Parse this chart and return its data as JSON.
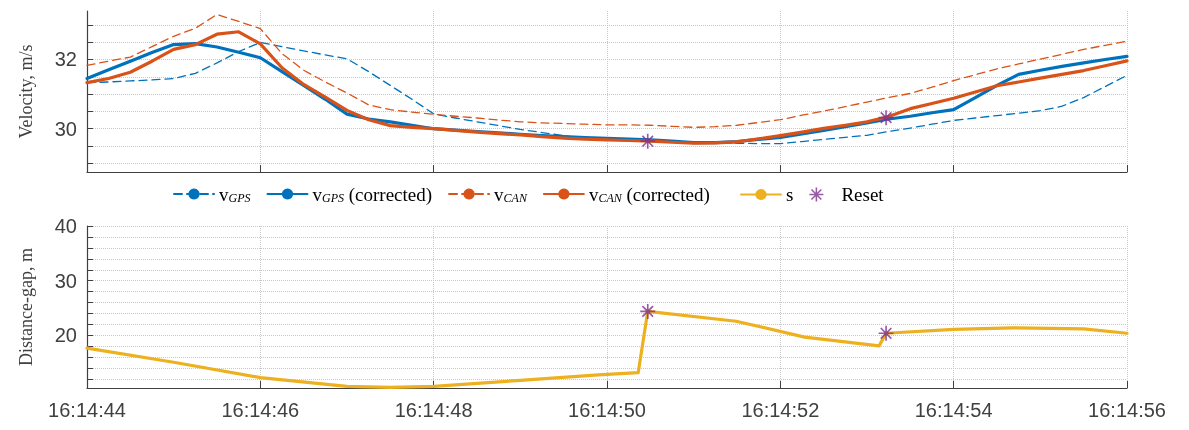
{
  "chart_data": [
    {
      "type": "line",
      "ylabel": "Velocity, m/s",
      "xlim": [
        16.2455556,
        16.2488889
      ],
      "xticks": [
        {
          "value": 16.2455556,
          "label": null
        },
        {
          "value": 16.2461111,
          "label": null
        },
        {
          "value": 16.2466667,
          "label": null
        },
        {
          "value": 16.2472222,
          "label": null
        },
        {
          "value": 16.2477778,
          "label": null
        },
        {
          "value": 16.2483333,
          "label": null
        },
        {
          "value": 16.2488889,
          "label": null
        }
      ],
      "ylim": [
        28.75,
        33.4
      ],
      "yticks": [
        {
          "value": 29,
          "label": null
        },
        {
          "value": 29.5,
          "label": null
        },
        30,
        {
          "value": 30.5,
          "label": null
        },
        {
          "value": 31,
          "label": null
        },
        {
          "value": 31.5,
          "label": null
        },
        32,
        {
          "value": 32.5,
          "label": null
        },
        {
          "value": 33,
          "label": null
        }
      ],
      "tick_labels": "y",
      "grid": true,
      "legend": "bottom",
      "x": [
        16.2455556,
        16.245625,
        16.2456944,
        16.2457639,
        16.2458333,
        16.2459028,
        16.2459722,
        16.2460417,
        16.2461111,
        16.2461806,
        16.24625,
        16.2463194,
        16.2463889,
        16.2464583,
        16.2465278,
        16.2465972,
        16.2466667,
        16.2467361,
        16.2468056,
        16.246875,
        16.2469444,
        16.2470139,
        16.2470833,
        16.2471528,
        16.2472222,
        16.2472917,
        16.2473611,
        16.2474306,
        16.2475,
        16.2475694,
        16.2476389,
        16.2477083,
        16.2477778,
        16.2478472,
        16.2479167,
        16.2479861,
        16.2480556,
        16.248125,
        16.2481944,
        16.2482639,
        16.2483333,
        16.2484028,
        16.2484722,
        16.2485417,
        16.2486111,
        16.2486806,
        16.24875,
        16.2488194,
        16.2488889
      ],
      "series": [
        {
          "name": "v$_{GPS}$",
          "color": "#0072bd",
          "line_style": "dashed",
          "values": [
            31.33,
            31.35,
            31.38,
            31.41,
            31.45,
            31.6,
            31.9,
            32.23,
            32.49,
            32.37,
            32.25,
            32.13,
            32.02,
            31.65,
            31.25,
            30.85,
            30.43,
            30.31,
            30.2,
            30.09,
            29.98,
            29.89,
            29.8,
            29.72,
            29.68,
            29.65,
            29.63,
            29.62,
            29.6,
            29.59,
            29.58,
            29.57,
            29.57,
            29.63,
            29.69,
            29.75,
            29.81,
            29.92,
            30.02,
            30.13,
            30.24,
            30.31,
            30.38,
            30.45,
            30.52,
            30.65,
            30.9,
            31.22,
            31.54
          ]
        },
        {
          "name": "v$_{GPS}$ (corrected)",
          "color": "#0072bd",
          "line_style": "solid",
          "values": [
            31.45,
            31.7,
            31.95,
            32.2,
            32.43,
            32.46,
            32.36,
            32.21,
            32.05,
            31.65,
            31.25,
            30.85,
            30.42,
            30.28,
            30.2,
            30.1,
            30.0,
            29.96,
            29.92,
            29.88,
            29.84,
            29.8,
            29.77,
            29.74,
            29.72,
            29.7,
            29.68,
            29.64,
            29.6,
            29.6,
            29.63,
            29.69,
            29.75,
            29.85,
            29.95,
            30.06,
            30.17,
            30.28,
            30.36,
            30.46,
            30.55,
            30.9,
            31.25,
            31.57,
            31.69,
            31.8,
            31.9,
            32.0,
            32.09
          ]
        },
        {
          "name": "v$_{CAN}$",
          "color": "#d95319",
          "line_style": "dashed",
          "values": [
            31.83,
            31.95,
            32.07,
            32.37,
            32.67,
            32.9,
            33.3,
            33.1,
            32.89,
            32.17,
            31.69,
            31.35,
            31.03,
            30.69,
            30.55,
            30.48,
            30.42,
            30.36,
            30.31,
            30.25,
            30.2,
            30.17,
            30.15,
            30.13,
            30.11,
            30.11,
            30.1,
            30.07,
            30.04,
            30.06,
            30.1,
            30.18,
            30.26,
            30.39,
            30.51,
            30.64,
            30.77,
            30.9,
            31.02,
            31.2,
            31.39,
            31.56,
            31.73,
            31.87,
            32.01,
            32.15,
            32.29,
            32.41,
            32.53
          ]
        },
        {
          "name": "v$_{CAN}$ (corrected)",
          "color": "#d95319",
          "line_style": "solid",
          "values": [
            31.33,
            31.45,
            31.63,
            31.95,
            32.29,
            32.43,
            32.73,
            32.8,
            32.45,
            31.76,
            31.28,
            30.91,
            30.53,
            30.26,
            30.09,
            30.04,
            30.0,
            29.95,
            29.9,
            29.86,
            29.82,
            29.77,
            29.73,
            29.7,
            29.68,
            29.66,
            29.64,
            29.61,
            29.58,
            29.59,
            29.62,
            29.71,
            29.8,
            29.9,
            30.01,
            30.1,
            30.2,
            30.35,
            30.58,
            30.73,
            30.88,
            31.06,
            31.24,
            31.35,
            31.46,
            31.57,
            31.68,
            31.82,
            31.96
          ]
        },
        {
          "type": "scatter",
          "color": "#7e2f8e",
          "marker": "star",
          "x": [
            16.2473528,
            16.2481167
          ],
          "values": [
            29.64,
            30.32
          ]
        }
      ]
    },
    {
      "type": "line",
      "ylabel": "Distance-gap, m",
      "xlim": [
        16.2455556,
        16.2488889
      ],
      "xticks": [
        {
          "value": 16.2455556,
          "label": "16:14:44"
        },
        {
          "value": 16.2461111,
          "label": "16:14:46"
        },
        {
          "value": 16.2466667,
          "label": "16:14:48"
        },
        {
          "value": 16.2472222,
          "label": "16:14:50"
        },
        {
          "value": 16.2477778,
          "label": "16:14:52"
        },
        {
          "value": 16.2483333,
          "label": "16:14:54"
        },
        {
          "value": 16.2488889,
          "label": "16:14:56"
        }
      ],
      "ylim": [
        10.4,
        40
      ],
      "yticks": [
        {
          "value": 12,
          "label": null
        },
        {
          "value": 14,
          "label": null
        },
        {
          "value": 16,
          "label": null
        },
        {
          "value": 18,
          "label": null
        },
        20,
        {
          "value": 22,
          "label": null
        },
        {
          "value": 24,
          "label": null
        },
        {
          "value": 26,
          "label": null
        },
        {
          "value": 28,
          "label": null
        },
        30,
        {
          "value": 32,
          "label": null
        },
        {
          "value": 34,
          "label": null
        },
        {
          "value": 36,
          "label": null
        },
        {
          "value": 38,
          "label": null
        },
        40
      ],
      "grid": true,
      "legend": "top",
      "series": [
        {
          "name": "s",
          "color": "#edb120",
          "line_style": "solid",
          "x": [
            16.2455556,
            16.2458333,
            16.2461111,
            16.2463889,
            16.2465278,
            16.2466667,
            16.2469444,
            16.2471944,
            16.2473222,
            16.2473528,
            16.2476361,
            16.2478556,
            16.2480944,
            16.2481167,
            16.2483333,
            16.2485222,
            16.24875,
            16.2488889
          ],
          "values": [
            17.7,
            15.1,
            12.3,
            10.7,
            10.5,
            10.7,
            11.8,
            12.8,
            13.2,
            24.4,
            22.6,
            19.7,
            18.1,
            20.4,
            21.1,
            21.4,
            21.2,
            20.4
          ]
        },
        {
          "name": "Reset",
          "type": "scatter",
          "color": "#7e2f8e",
          "marker": "star",
          "x": [
            16.2473528,
            16.2481167
          ],
          "values": [
            24.4,
            20.4
          ]
        }
      ]
    }
  ]
}
